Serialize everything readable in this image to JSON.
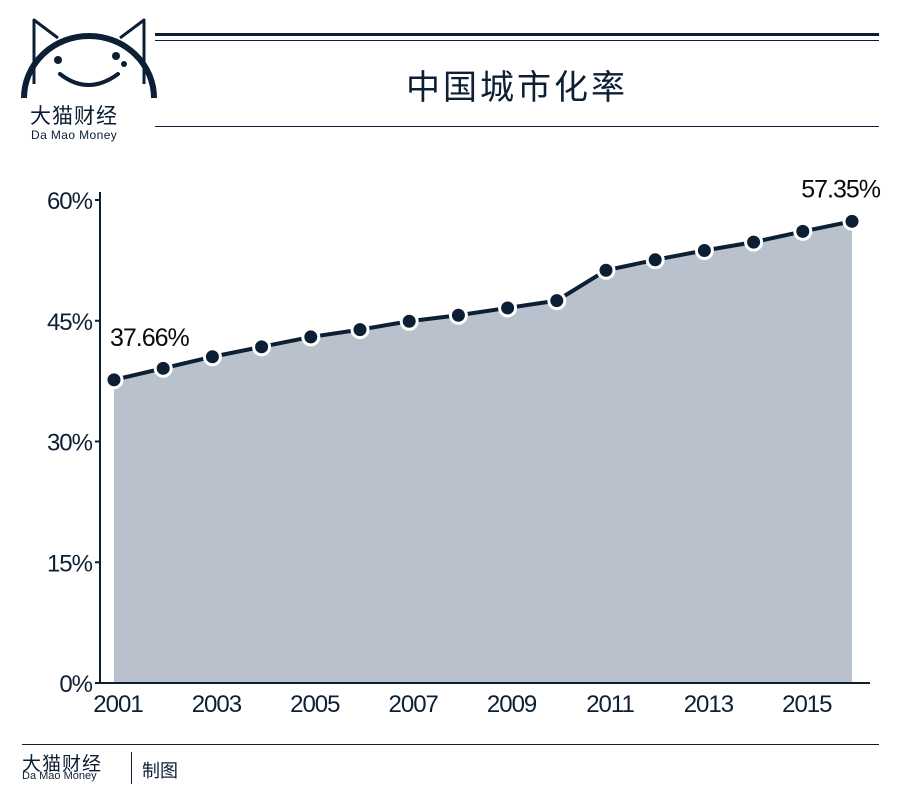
{
  "brand": {
    "name_cn": "大猫财经",
    "name_en": "Da Mao Money"
  },
  "title": "中国城市化率",
  "footer": {
    "brand_cn": "大猫财经",
    "brand_en": "Da Mao Money",
    "label": "制图"
  },
  "colors": {
    "navy": "#0d1f35",
    "area_fill": "#b9c2cc"
  },
  "chart_data": {
    "type": "area",
    "title": "中国城市化率",
    "x": [
      2001,
      2002,
      2003,
      2004,
      2005,
      2006,
      2007,
      2008,
      2009,
      2010,
      2011,
      2012,
      2013,
      2014,
      2015,
      2016
    ],
    "values": [
      37.66,
      39.09,
      40.53,
      41.76,
      42.99,
      43.9,
      44.94,
      45.68,
      46.59,
      47.5,
      51.27,
      52.57,
      53.73,
      54.77,
      56.1,
      57.35
    ],
    "unit": "%",
    "ylim": [
      0,
      60
    ],
    "yticks": [
      0,
      15,
      30,
      45,
      60
    ],
    "ytick_labels": [
      "0%",
      "15%",
      "30%",
      "45%",
      "60%"
    ],
    "xtick_labels": [
      "2001",
      "2003",
      "2005",
      "2007",
      "2009",
      "2011",
      "2013",
      "2015"
    ],
    "annotations": [
      {
        "x": 2001,
        "text": "37.66%"
      },
      {
        "x": 2016,
        "text": "57.35%"
      }
    ],
    "grid": false,
    "legend": "none"
  }
}
